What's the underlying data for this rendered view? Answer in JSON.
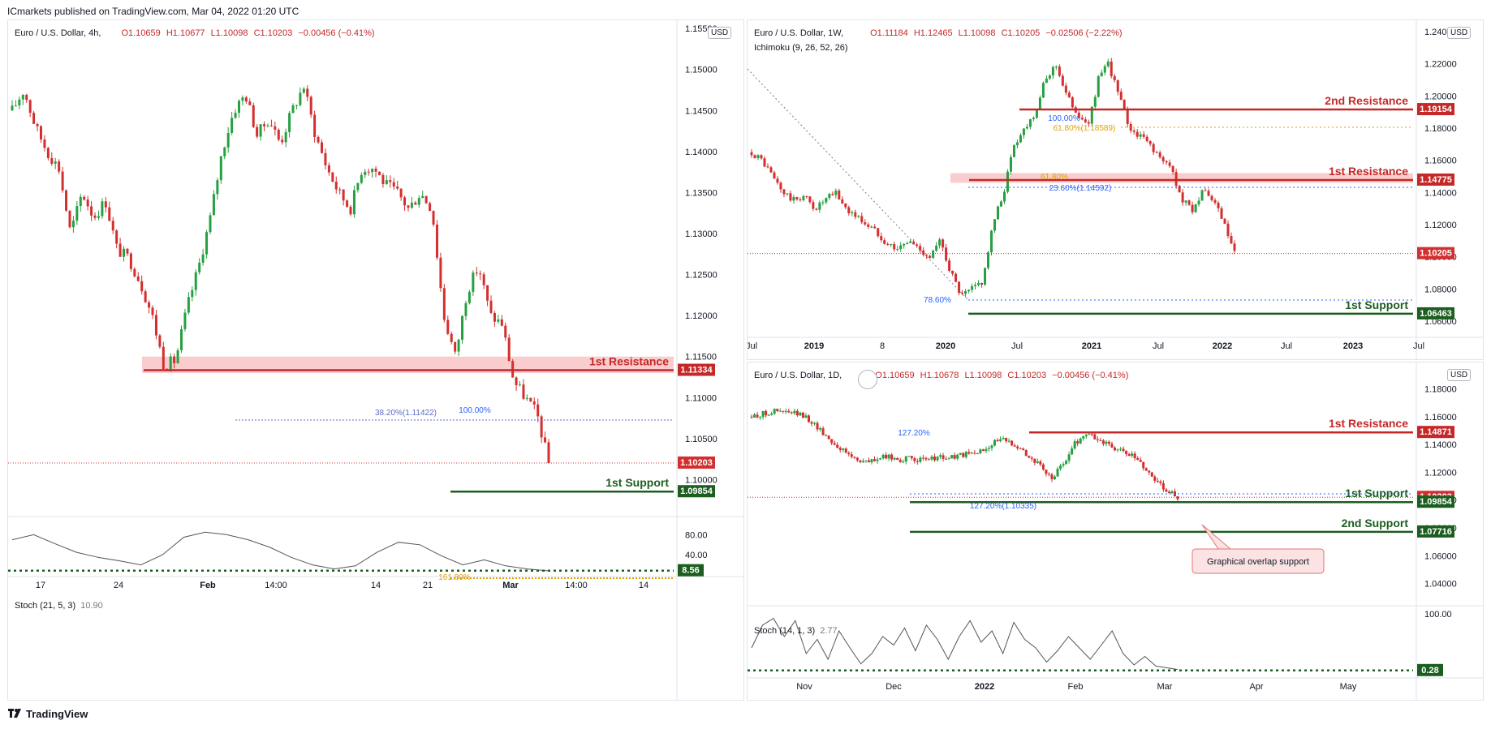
{
  "header": "ICmarkets published on TradingView.com, Mar 04, 2022 01:20 UTC",
  "footer": {
    "logo": "TradingView",
    "logo_icon": "tradingview-logo-icon"
  },
  "colors": {
    "up": "#26a041",
    "down": "#d32f2f",
    "resistance": "#c62828",
    "support": "#1b5e20",
    "zone": "#f8c4c4",
    "fib_blue": "#2962ff",
    "fib_orange": "#e0a100",
    "stoch": "#555555"
  },
  "chart_data": [
    {
      "type": "candlestick",
      "title": "Euro / U.S. Dollar, 4h,",
      "ohlc": {
        "o": "O1.10659",
        "h": "H1.10677",
        "l": "L1.10098",
        "c": "C1.10203",
        "chg": "−0.00456 (−0.41%)"
      },
      "currency": "USD",
      "y_ticks": [
        "1.15500",
        "1.15000",
        "1.14500",
        "1.14000",
        "1.13500",
        "1.13000",
        "1.12500",
        "1.12000",
        "1.11500",
        "1.11000",
        "1.10500",
        "1.10000"
      ],
      "ylim": [
        1.0955,
        1.156
      ],
      "x_ticks": [
        {
          "label": "17",
          "bold": false
        },
        {
          "label": "24",
          "bold": false
        },
        {
          "label": "Feb",
          "bold": true
        },
        {
          "label": "14:00",
          "bold": false
        },
        {
          "label": "14",
          "bold": false
        },
        {
          "label": "21",
          "bold": false
        },
        {
          "label": "Mar",
          "bold": true
        },
        {
          "label": "14:00",
          "bold": false
        },
        {
          "label": "14",
          "bold": false
        }
      ],
      "levels": [
        {
          "name": "1st Resistance",
          "value": 1.11334,
          "label": "1.11334",
          "kind": "resistance"
        },
        {
          "name": "1st Support",
          "value": 1.09854,
          "label": "1.09854",
          "kind": "support"
        },
        {
          "name": "current",
          "value": 1.10203,
          "label": "1.10203",
          "kind": "current"
        }
      ],
      "zone": [
        1.113,
        1.115
      ],
      "fib_labels": [
        "38.20%(1.11422)",
        "100.00%",
        "161.80%"
      ],
      "price_path": [
        1.145,
        1.1475,
        1.143,
        1.14,
        1.138,
        1.13,
        1.135,
        1.132,
        1.134,
        1.128,
        1.127,
        1.124,
        1.12,
        1.114,
        1.1145,
        1.121,
        1.126,
        1.132,
        1.14,
        1.145,
        1.147,
        1.142,
        1.144,
        1.141,
        1.145,
        1.148,
        1.142,
        1.138,
        1.135,
        1.133,
        1.138,
        1.138,
        1.136,
        1.135,
        1.133,
        1.135,
        1.133,
        1.12,
        1.115,
        1.123,
        1.126,
        1.12,
        1.119,
        1.112,
        1.11,
        1.108,
        1.102
      ],
      "stoch": {
        "title": "Stoch (21, 5, 3)",
        "value": "10.90",
        "badge": "8.56",
        "ticks": [
          "80.00",
          "40.00"
        ],
        "path": [
          70,
          80,
          62,
          45,
          35,
          28,
          20,
          40,
          75,
          85,
          80,
          70,
          55,
          35,
          20,
          12,
          18,
          45,
          65,
          60,
          38,
          20,
          30,
          18,
          12,
          8
        ]
      }
    },
    {
      "type": "candlestick",
      "title": "Euro / U.S. Dollar, 1W,",
      "indicator": "Ichimoku (9, 26, 52, 26)",
      "ohlc": {
        "o": "O1.11184",
        "h": "H1.12465",
        "l": "L1.10098",
        "c": "C1.10205",
        "chg": "−0.02506 (−2.22%)"
      },
      "currency": "USD",
      "y_ticks": [
        "1.24000",
        "1.22000",
        "1.20000",
        "1.18000",
        "1.16000",
        "1.14000",
        "1.12000",
        "1.10000",
        "1.08000",
        "1.06000"
      ],
      "ylim": [
        1.053,
        1.247
      ],
      "x_ticks": [
        {
          "label": "Jul",
          "bold": false
        },
        {
          "label": "2019",
          "bold": true
        },
        {
          "label": "8",
          "bold": false
        },
        {
          "label": "2020",
          "bold": true
        },
        {
          "label": "Jul",
          "bold": false
        },
        {
          "label": "2021",
          "bold": true
        },
        {
          "label": "Jul",
          "bold": false
        },
        {
          "label": "2022",
          "bold": true
        },
        {
          "label": "Jul",
          "bold": false
        },
        {
          "label": "2023",
          "bold": true
        },
        {
          "label": "Jul",
          "bold": false
        }
      ],
      "levels": [
        {
          "name": "2nd Resistance",
          "value": 1.19154,
          "label": "1.19154",
          "kind": "resistance"
        },
        {
          "name": "1st Resistance",
          "value": 1.14775,
          "label": "1.14775",
          "kind": "resistance"
        },
        {
          "name": "current",
          "value": 1.10205,
          "label": "1.10205",
          "kind": "current"
        },
        {
          "name": "1st Support",
          "value": 1.06463,
          "label": "1.06463",
          "kind": "support"
        }
      ],
      "zone": [
        1.146,
        1.152
      ],
      "fib_labels": [
        "61.80%",
        "23.60%(1.14592)",
        "78.60%",
        "61.80%(1.18589)",
        "100.00%"
      ],
      "price_path": [
        1.165,
        1.16,
        1.15,
        1.14,
        1.135,
        1.138,
        1.13,
        1.135,
        1.14,
        1.13,
        1.125,
        1.12,
        1.115,
        1.108,
        1.105,
        1.11,
        1.105,
        1.1,
        1.11,
        1.09,
        1.075,
        1.08,
        1.085,
        1.12,
        1.14,
        1.17,
        1.18,
        1.19,
        1.21,
        1.22,
        1.2,
        1.19,
        1.18,
        1.21,
        1.22,
        1.2,
        1.18,
        1.175,
        1.17,
        1.16,
        1.155,
        1.135,
        1.13,
        1.14,
        1.135,
        1.12,
        1.102
      ]
    },
    {
      "type": "candlestick",
      "title": "Euro / U.S. Dollar, 1D, ",
      "ohlc": {
        "o": "O1.10659",
        "h": "H1.10678",
        "l": "L1.10098",
        "c": "C1.10203",
        "chg": "−0.00456 (−0.41%)"
      },
      "currency": "USD",
      "y_ticks": [
        "1.18000",
        "1.16000",
        "1.14000",
        "1.12000",
        "1.10000",
        "1.08000",
        "1.06000",
        "1.04000"
      ],
      "ylim": [
        1.024,
        1.199
      ],
      "x_ticks": [
        {
          "label": "Nov",
          "bold": false
        },
        {
          "label": "Dec",
          "bold": false
        },
        {
          "label": "2022",
          "bold": true
        },
        {
          "label": "Feb",
          "bold": false
        },
        {
          "label": "Mar",
          "bold": false
        },
        {
          "label": "Apr",
          "bold": false
        },
        {
          "label": "May",
          "bold": false
        }
      ],
      "levels": [
        {
          "name": "1st Resistance",
          "value": 1.14871,
          "label": "1.14871",
          "kind": "resistance"
        },
        {
          "name": "current",
          "value": 1.10203,
          "label": "1.10203",
          "kind": "current"
        },
        {
          "name": "1st Support",
          "value": 1.09854,
          "label": "1.09854",
          "kind": "support"
        },
        {
          "name": "2nd Support",
          "value": 1.07716,
          "label": "1.07716",
          "kind": "support"
        }
      ],
      "fib_labels": [
        "127.20%",
        "127.20%(1.10335)"
      ],
      "callout": "Graphical overlap support",
      "price_path": [
        1.16,
        1.162,
        1.164,
        1.163,
        1.162,
        1.158,
        1.15,
        1.142,
        1.135,
        1.13,
        1.127,
        1.13,
        1.131,
        1.129,
        1.13,
        1.128,
        1.131,
        1.13,
        1.132,
        1.133,
        1.135,
        1.142,
        1.143,
        1.14,
        1.132,
        1.125,
        1.115,
        1.125,
        1.14,
        1.148,
        1.144,
        1.14,
        1.135,
        1.132,
        1.125,
        1.115,
        1.108,
        1.102
      ],
      "stoch": {
        "title": "Stoch (14, 1, 3)",
        "value": "2.77",
        "badge": "0.28",
        "ticks": [
          "100.00"
        ],
        "path": [
          40,
          80,
          92,
          60,
          88,
          30,
          55,
          20,
          70,
          40,
          12,
          30,
          60,
          45,
          75,
          35,
          80,
          55,
          20,
          60,
          88,
          50,
          70,
          30,
          85,
          55,
          40,
          15,
          35,
          60,
          40,
          20,
          45,
          70,
          30,
          10,
          25,
          8,
          5,
          2
        ]
      }
    }
  ]
}
